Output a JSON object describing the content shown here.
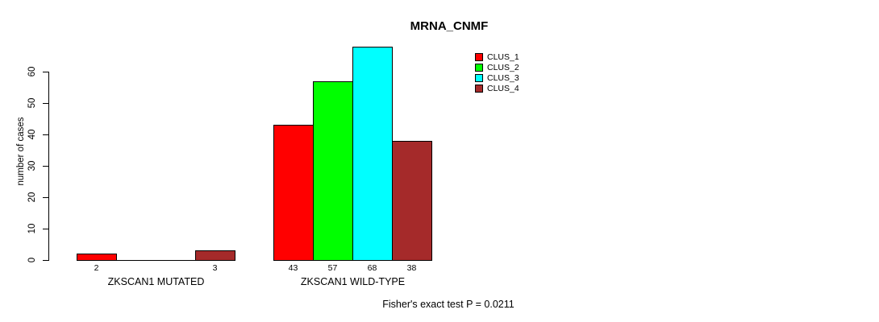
{
  "chart_data": {
    "type": "bar",
    "title": "MRNA_CNMF",
    "ylabel": "number of cases",
    "xlabel": "",
    "ylim": [
      0,
      60
    ],
    "yticks": [
      0,
      10,
      20,
      30,
      40,
      50,
      60
    ],
    "grid": false,
    "legend_position": "top-right",
    "categories": [
      "ZKSCAN1 MUTATED",
      "ZKSCAN1 WILD-TYPE"
    ],
    "series": [
      {
        "name": "CLUS_1",
        "color": "#FF0000",
        "values": [
          2,
          43
        ]
      },
      {
        "name": "CLUS_2",
        "color": "#00FF00",
        "values": [
          0,
          57
        ]
      },
      {
        "name": "CLUS_3",
        "color": "#00FFFF",
        "values": [
          0,
          68
        ]
      },
      {
        "name": "CLUS_4",
        "color": "#A52A2A",
        "values": [
          3,
          38
        ]
      }
    ],
    "bar_value_labels": [
      [
        "2",
        "",
        "",
        "3"
      ],
      [
        "43",
        "57",
        "68",
        "38"
      ]
    ],
    "annotation": "Fisher's exact test P = 0.0211"
  }
}
